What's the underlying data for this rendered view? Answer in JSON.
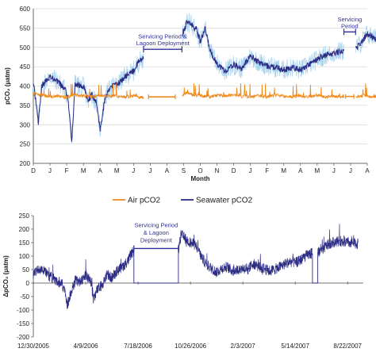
{
  "chart_data": [
    {
      "type": "line",
      "xlabel": "Month",
      "ylabel": "pCO₂ (µatm)",
      "ylim": [
        200,
        600
      ],
      "y_ticks": [
        200,
        250,
        300,
        350,
        400,
        450,
        500,
        550,
        600
      ],
      "month_ticks": [
        "D",
        "J",
        "F",
        "M",
        "A",
        "M",
        "J",
        "J",
        "A",
        "S",
        "O",
        "N",
        "D",
        "J",
        "F",
        "M",
        "A",
        "M",
        "J",
        "J",
        "A"
      ],
      "grid": "horizontal",
      "annotations": [
        {
          "text_lines": [
            "Servicing Period &",
            "Lagoon Deployment"
          ],
          "span_months": [
            6.6,
            8.9
          ]
        },
        {
          "text_lines": [
            "Servicing",
            "Period"
          ],
          "span_months": [
            18.6,
            19.3
          ]
        }
      ],
      "series": [
        {
          "name": "Air pCO2",
          "color": "#f08a1c",
          "gaps": [
            [
              6.6,
              8.9
            ],
            [
              18.6,
              19.3
            ]
          ],
          "points": [
            [
              0,
              380
            ],
            [
              0.5,
              376
            ],
            [
              1,
              372
            ],
            [
              1.5,
              375
            ],
            [
              2,
              370
            ],
            [
              2.5,
              378
            ],
            [
              3,
              374
            ],
            [
              3.5,
              372
            ],
            [
              4,
              376
            ],
            [
              4.5,
              373
            ],
            [
              5,
              375
            ],
            [
              5.5,
              372
            ],
            [
              6,
              374
            ],
            [
              6.6,
              370
            ],
            [
              8.9,
              372
            ],
            [
              9.2,
              385
            ],
            [
              9.5,
              378
            ],
            [
              10,
              375
            ],
            [
              10.5,
              372
            ],
            [
              11,
              376
            ],
            [
              11.5,
              374
            ],
            [
              12,
              378
            ],
            [
              12.5,
              373
            ],
            [
              13,
              372
            ],
            [
              13.5,
              375
            ],
            [
              14,
              372
            ],
            [
              14.5,
              377
            ],
            [
              15,
              374
            ],
            [
              15.5,
              372
            ],
            [
              16,
              375
            ],
            [
              16.5,
              373
            ],
            [
              17,
              376
            ],
            [
              17.5,
              372
            ],
            [
              18,
              374
            ],
            [
              18.6,
              372
            ],
            [
              19.3,
              373
            ],
            [
              19.8,
              375
            ],
            [
              20.5,
              372
            ],
            [
              21,
              374
            ]
          ],
          "flat_segments": [
            {
              "from": 6.9,
              "to": 8.5,
              "value": 372
            },
            {
              "from": 18.7,
              "to": 19.2,
              "value": 373
            }
          ]
        },
        {
          "name": "Seawater pCO2",
          "color": "#2d2d86",
          "band_color": "#a9d4f0",
          "gaps": [
            [
              6.6,
              8.9
            ],
            [
              18.6,
              19.3
            ]
          ],
          "points": [
            [
              0,
              410
            ],
            [
              0.15,
              360
            ],
            [
              0.3,
              305
            ],
            [
              0.5,
              400
            ],
            [
              1,
              425
            ],
            [
              1.5,
              410
            ],
            [
              1.9,
              392
            ],
            [
              2.1,
              362
            ],
            [
              2.3,
              255
            ],
            [
              2.5,
              405
            ],
            [
              3,
              398
            ],
            [
              3.3,
              362
            ],
            [
              3.5,
              380
            ],
            [
              3.8,
              355
            ],
            [
              4.0,
              285
            ],
            [
              4.3,
              372
            ],
            [
              4.7,
              398
            ],
            [
              5,
              402
            ],
            [
              5.5,
              425
            ],
            [
              6,
              438
            ],
            [
              6.3,
              462
            ],
            [
              6.6,
              472
            ],
            [
              8.9,
              530
            ],
            [
              9.2,
              565
            ],
            [
              9.5,
              558
            ],
            [
              9.8,
              545
            ],
            [
              10,
              515
            ],
            [
              10.3,
              548
            ],
            [
              10.6,
              490
            ],
            [
              11,
              458
            ],
            [
              11.5,
              438
            ],
            [
              12,
              455
            ],
            [
              12.5,
              445
            ],
            [
              13,
              478
            ],
            [
              13.5,
              462
            ],
            [
              14,
              452
            ],
            [
              14.5,
              448
            ],
            [
              15,
              442
            ],
            [
              15.5,
              448
            ],
            [
              16,
              442
            ],
            [
              16.5,
              455
            ],
            [
              17,
              468
            ],
            [
              17.5,
              480
            ],
            [
              18,
              485
            ],
            [
              18.6,
              492
            ],
            [
              19.3,
              498
            ],
            [
              19.6,
              510
            ],
            [
              20,
              535
            ],
            [
              20.4,
              525
            ],
            [
              20.7,
              515
            ],
            [
              21,
              508
            ]
          ]
        }
      ]
    },
    {
      "type": "line",
      "xlabel": "",
      "ylabel": "ΔpCO₂ (µatm)",
      "ylim": [
        -200,
        250
      ],
      "y_ticks": [
        -200,
        -150,
        -100,
        -50,
        0,
        50,
        100,
        150,
        200,
        250
      ],
      "x_ticks": [
        "12/30/2005",
        "4/9/2006",
        "7/18/2006",
        "10/26/2006",
        "2/3/2007",
        "5/14/2007",
        "8/22/2007"
      ],
      "x_tick_days": [
        0,
        100,
        200,
        300,
        400,
        500,
        600
      ],
      "xlim_days": [
        0,
        630
      ],
      "legend": {
        "position": "top",
        "entries": [
          "Air pCO2",
          "Seawater pCO2"
        ]
      },
      "annotations": [
        {
          "text_lines": [
            "Servicing Period",
            "& Lagoon",
            "Deployment"
          ],
          "span_days": [
            192,
            277
          ]
        }
      ],
      "series": [
        {
          "name": "Seawater pCO2",
          "color": "#2d2d86",
          "flat_segments": [
            {
              "from": 192,
              "to": 277,
              "value": 0
            },
            {
              "from": 533,
              "to": 543,
              "value": 0
            }
          ],
          "points": [
            [
              0,
              40
            ],
            [
              15,
              55
            ],
            [
              30,
              25
            ],
            [
              45,
              10
            ],
            [
              55,
              -5
            ],
            [
              60,
              -35
            ],
            [
              65,
              -80
            ],
            [
              70,
              -50
            ],
            [
              80,
              10
            ],
            [
              90,
              5
            ],
            [
              100,
              30
            ],
            [
              110,
              5
            ],
            [
              115,
              -60
            ],
            [
              122,
              -25
            ],
            [
              130,
              -10
            ],
            [
              140,
              30
            ],
            [
              150,
              20
            ],
            [
              160,
              45
            ],
            [
              170,
              60
            ],
            [
              180,
              80
            ],
            [
              185,
              100
            ],
            [
              192,
              120
            ],
            [
              277,
              120
            ],
            [
              282,
              180
            ],
            [
              290,
              165
            ],
            [
              300,
              150
            ],
            [
              310,
              140
            ],
            [
              315,
              125
            ],
            [
              320,
              100
            ],
            [
              330,
              70
            ],
            [
              340,
              55
            ],
            [
              350,
              40
            ],
            [
              360,
              55
            ],
            [
              370,
              60
            ],
            [
              380,
              45
            ],
            [
              390,
              50
            ],
            [
              400,
              55
            ],
            [
              410,
              50
            ],
            [
              420,
              75
            ],
            [
              430,
              60
            ],
            [
              440,
              55
            ],
            [
              450,
              45
            ],
            [
              460,
              50
            ],
            [
              470,
              60
            ],
            [
              480,
              70
            ],
            [
              490,
              80
            ],
            [
              500,
              75
            ],
            [
              510,
              85
            ],
            [
              520,
              100
            ],
            [
              530,
              110
            ],
            [
              533,
              110
            ],
            [
              543,
              115
            ],
            [
              550,
              120
            ],
            [
              560,
              140
            ],
            [
              570,
              150
            ],
            [
              580,
              155
            ],
            [
              590,
              155
            ],
            [
              600,
              150
            ],
            [
              610,
              150
            ],
            [
              620,
              145
            ]
          ]
        }
      ]
    }
  ]
}
